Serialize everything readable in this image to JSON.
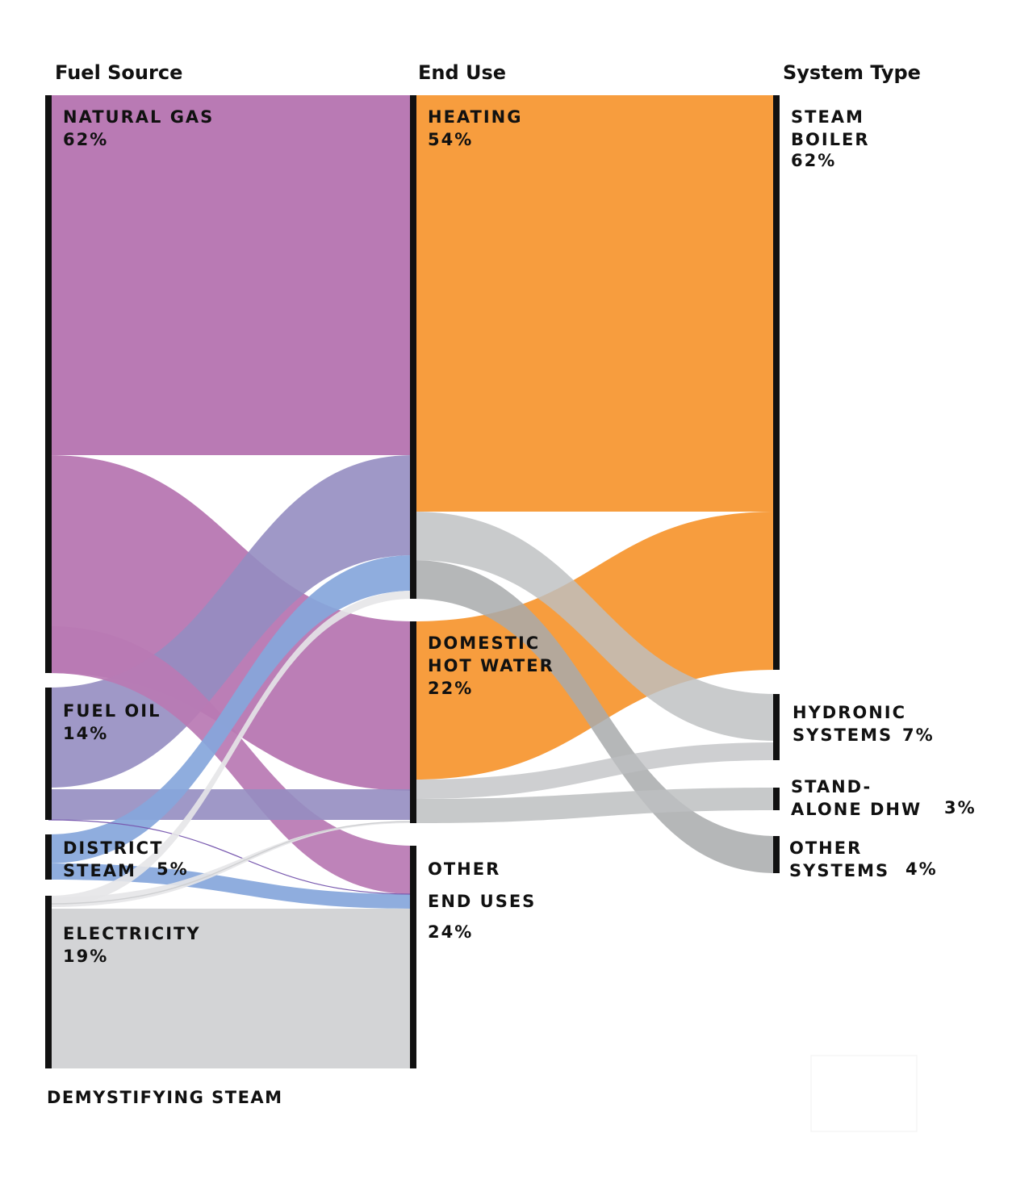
{
  "headers": {
    "fuel_source": "Fuel Source",
    "end_use": "End Use",
    "system_type": "System Type"
  },
  "nodes": {
    "natural_gas": {
      "line1": "NATURAL GAS",
      "pct": "62%"
    },
    "fuel_oil": {
      "line1": "FUEL OIL",
      "pct": "14%"
    },
    "district_steam": {
      "line1": "DISTRICT",
      "line2": "STEAM",
      "pct": "5%"
    },
    "electricity": {
      "line1": "ELECTRICITY",
      "pct": "19%"
    },
    "heating": {
      "line1": "HEATING",
      "pct": "54%"
    },
    "dhw": {
      "line1": "DOMESTIC",
      "line2": "HOT WATER",
      "pct": "22%"
    },
    "other_end_uses": {
      "line1": "OTHER",
      "line2": "END USES",
      "pct": "24%"
    },
    "steam_boiler": {
      "line1": "STEAM",
      "line2": "BOILER",
      "pct": "62%"
    },
    "hydronic": {
      "line1": "HYDRONIC",
      "line2": "SYSTEMS",
      "pct": "7%"
    },
    "standalone": {
      "line1": "STAND-",
      "line2": "ALONE DHW",
      "pct": "3%"
    },
    "other_systems": {
      "line1": "OTHER",
      "line2": "SYSTEMS",
      "pct": "4%"
    }
  },
  "colors": {
    "natural_gas": "#b97ab4",
    "fuel_oil": "#958dc1",
    "district_steam": "#86a6db",
    "electricity": "#d3d4d6",
    "heating": "#f79d3e",
    "grey_flow": "#bdbfc1",
    "dark_grey_flow": "#a8aaac"
  },
  "footer": "DEMYSTIFYING STEAM"
}
